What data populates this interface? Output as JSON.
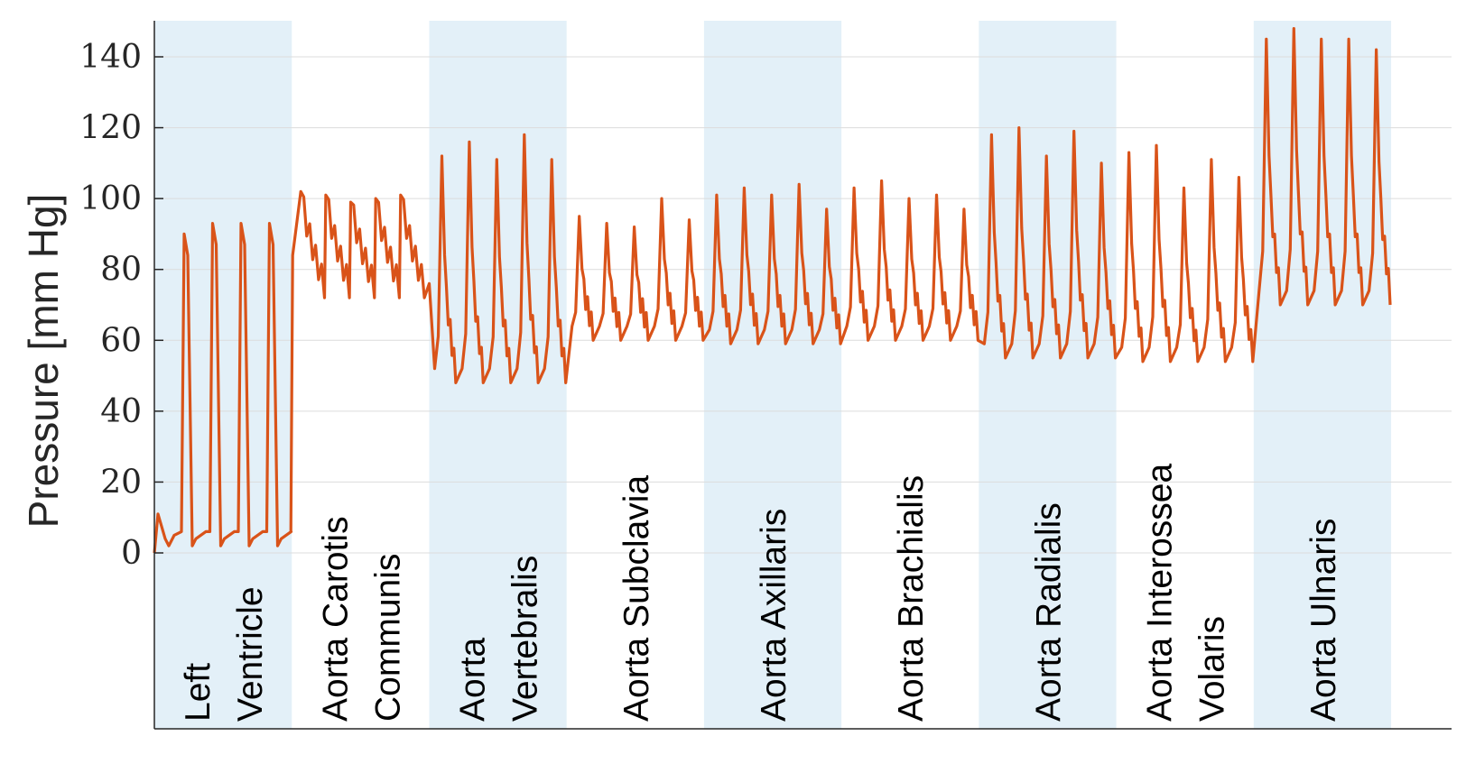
{
  "chart_data": {
    "type": "line",
    "title": "",
    "xlabel": "",
    "ylabel": "Pressure [mm Hg]",
    "ylim": [
      0,
      150
    ],
    "yticks": [
      0,
      20,
      40,
      60,
      80,
      100,
      120,
      140
    ],
    "grid": true,
    "colors": {
      "line": "#D95319",
      "band": "#E3F0F8",
      "axis": "#262626",
      "grid": "#DCDCDC"
    },
    "segments": [
      {
        "label": [
          "Left",
          "Ventricle"
        ],
        "shaded": true,
        "kind": "ventricle",
        "beats": 4,
        "baseline": 2,
        "dia": 6,
        "peak": [
          90,
          93,
          93,
          93
        ]
      },
      {
        "label": [
          "Aorta Carotis",
          "Communis"
        ],
        "shaded": false,
        "kind": "carotid",
        "beats": 4.5,
        "baseline": 84,
        "dia": 74,
        "peak": [
          102,
          101,
          99,
          100,
          101
        ]
      },
      {
        "label": [
          "Aorta",
          "Vertebralis"
        ],
        "shaded": true,
        "kind": "artery",
        "beats": 5,
        "dia": 50,
        "peak": [
          112,
          116,
          111,
          118,
          111
        ]
      },
      {
        "label": [
          "Aorta Subclavia"
        ],
        "shaded": false,
        "kind": "artery",
        "beats": 5,
        "dia": 62,
        "peak": [
          95,
          93,
          92,
          100,
          94
        ]
      },
      {
        "label": [
          "Aorta Axillaris"
        ],
        "shaded": true,
        "kind": "artery",
        "beats": 5,
        "dia": 61,
        "peak": [
          101,
          103,
          101,
          104,
          97
        ]
      },
      {
        "label": [
          "Aorta Brachialis"
        ],
        "shaded": false,
        "kind": "artery",
        "beats": 5,
        "dia": 62,
        "peak": [
          103,
          105,
          100,
          101,
          97
        ]
      },
      {
        "label": [
          "Aorta Radialis"
        ],
        "shaded": true,
        "kind": "artery",
        "beats": 5,
        "dia": 57,
        "peak": [
          118,
          120,
          112,
          119,
          110
        ]
      },
      {
        "label": [
          "Aorta Interossea",
          "Volaris"
        ],
        "shaded": false,
        "kind": "artery",
        "beats": 5,
        "dia": 56,
        "peak": [
          113,
          115,
          103,
          111,
          106
        ]
      },
      {
        "label": [
          "Aorta Ulnaris"
        ],
        "shaded": true,
        "kind": "artery",
        "beats": 5,
        "dia": 72,
        "peak": [
          145,
          148,
          145,
          145,
          142
        ]
      }
    ]
  }
}
